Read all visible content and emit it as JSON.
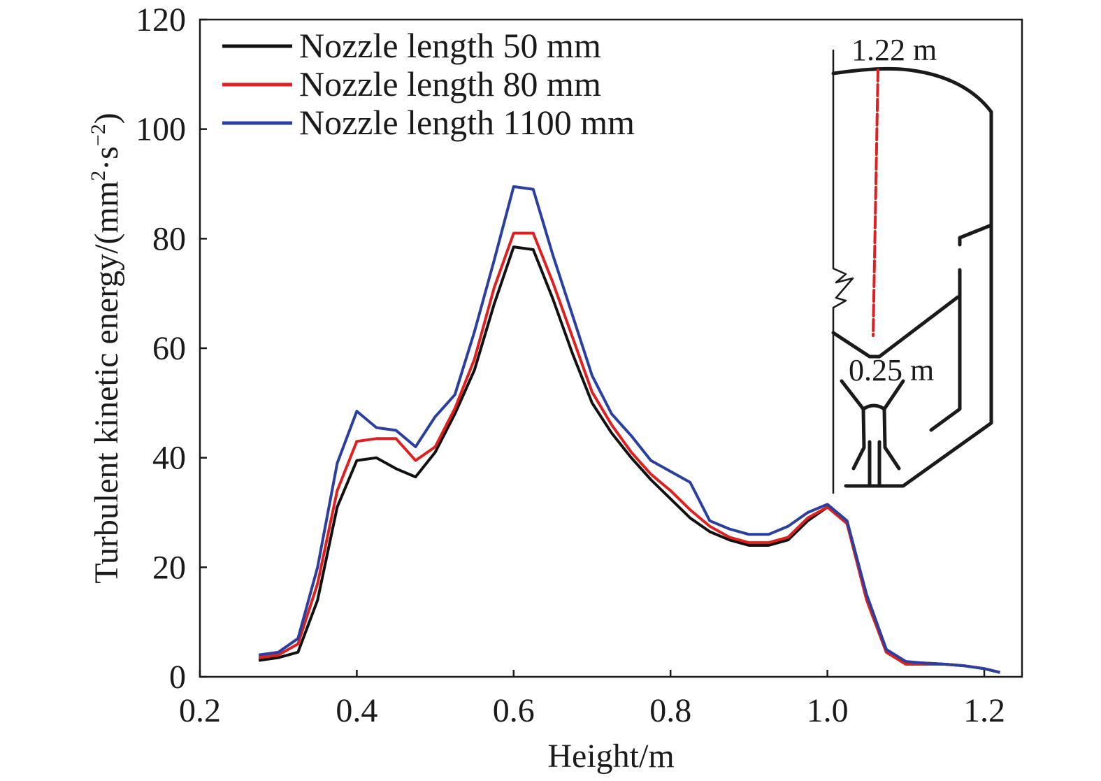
{
  "chart_data": {
    "type": "line",
    "xlabel": "Height/m",
    "ylabel": "Turbulent kinetic energy/(mm",
    "ylabel_sup1": "2",
    "ylabel_mid": "·s",
    "ylabel_sup2": "−2",
    "ylabel_end": ")",
    "xlim": [
      0.2,
      1.25
    ],
    "ylim": [
      0,
      120
    ],
    "xticks": [
      "0.2",
      "0.4",
      "0.6",
      "0.8",
      "1.0",
      "1.2"
    ],
    "xtick_values": [
      0.2,
      0.4,
      0.6,
      0.8,
      1.0,
      1.2
    ],
    "yticks": [
      "0",
      "20",
      "40",
      "60",
      "80",
      "100",
      "120"
    ],
    "ytick_values": [
      0,
      20,
      40,
      60,
      80,
      100,
      120
    ],
    "grid": false,
    "legend_position": "top-left",
    "series": [
      {
        "name": "Nozzle length 50 mm",
        "color": "#111111",
        "points": [
          [
            0.275,
            3
          ],
          [
            0.3,
            3.5
          ],
          [
            0.325,
            4.5
          ],
          [
            0.35,
            14
          ],
          [
            0.375,
            31
          ],
          [
            0.4,
            39.5
          ],
          [
            0.425,
            40
          ],
          [
            0.45,
            38
          ],
          [
            0.475,
            36.5
          ],
          [
            0.5,
            41
          ],
          [
            0.525,
            48
          ],
          [
            0.55,
            56
          ],
          [
            0.575,
            68
          ],
          [
            0.6,
            78.5
          ],
          [
            0.625,
            78
          ],
          [
            0.65,
            69
          ],
          [
            0.675,
            59
          ],
          [
            0.7,
            50
          ],
          [
            0.725,
            44.5
          ],
          [
            0.75,
            40
          ],
          [
            0.775,
            36
          ],
          [
            0.8,
            32.5
          ],
          [
            0.825,
            29
          ],
          [
            0.85,
            26.5
          ],
          [
            0.875,
            25
          ],
          [
            0.9,
            24
          ],
          [
            0.925,
            24
          ],
          [
            0.95,
            25
          ],
          [
            0.975,
            28.5
          ],
          [
            1.0,
            31
          ],
          [
            1.025,
            28
          ],
          [
            1.05,
            15
          ],
          [
            1.075,
            5
          ],
          [
            1.1,
            2.5
          ],
          [
            1.125,
            2.5
          ],
          [
            1.15,
            2.3
          ],
          [
            1.175,
            2
          ],
          [
            1.2,
            1.5
          ],
          [
            1.22,
            0.8
          ]
        ]
      },
      {
        "name": "Nozzle length 80 mm",
        "color": "#e02020",
        "points": [
          [
            0.275,
            3.5
          ],
          [
            0.3,
            4
          ],
          [
            0.325,
            6
          ],
          [
            0.35,
            17
          ],
          [
            0.375,
            34
          ],
          [
            0.4,
            43
          ],
          [
            0.425,
            43.5
          ],
          [
            0.45,
            43.5
          ],
          [
            0.475,
            39.5
          ],
          [
            0.5,
            42
          ],
          [
            0.525,
            49
          ],
          [
            0.55,
            58
          ],
          [
            0.575,
            71
          ],
          [
            0.6,
            81
          ],
          [
            0.625,
            81
          ],
          [
            0.65,
            72
          ],
          [
            0.675,
            62
          ],
          [
            0.7,
            52
          ],
          [
            0.725,
            46
          ],
          [
            0.75,
            41
          ],
          [
            0.775,
            37
          ],
          [
            0.8,
            34
          ],
          [
            0.825,
            30.5
          ],
          [
            0.85,
            27.5
          ],
          [
            0.875,
            25.5
          ],
          [
            0.9,
            24.5
          ],
          [
            0.925,
            24.5
          ],
          [
            0.95,
            25.5
          ],
          [
            0.975,
            29
          ],
          [
            1.0,
            31
          ],
          [
            1.025,
            28
          ],
          [
            1.05,
            14
          ],
          [
            1.075,
            4.5
          ],
          [
            1.1,
            2.3
          ],
          [
            1.125,
            2.3
          ],
          [
            1.15,
            2.3
          ],
          [
            1.175,
            2
          ],
          [
            1.2,
            1.5
          ],
          [
            1.22,
            0.8
          ]
        ]
      },
      {
        "name": "Nozzle length 1100 mm",
        "color": "#2b3fa0",
        "points": [
          [
            0.275,
            4
          ],
          [
            0.3,
            4.5
          ],
          [
            0.325,
            7
          ],
          [
            0.35,
            20
          ],
          [
            0.375,
            39
          ],
          [
            0.4,
            48.5
          ],
          [
            0.425,
            45.5
          ],
          [
            0.45,
            45
          ],
          [
            0.475,
            42
          ],
          [
            0.5,
            47.5
          ],
          [
            0.525,
            51.5
          ],
          [
            0.55,
            63
          ],
          [
            0.575,
            76
          ],
          [
            0.6,
            89.5
          ],
          [
            0.625,
            89
          ],
          [
            0.65,
            77
          ],
          [
            0.675,
            66
          ],
          [
            0.7,
            55
          ],
          [
            0.725,
            48
          ],
          [
            0.75,
            44
          ],
          [
            0.775,
            39.5
          ],
          [
            0.8,
            37.5
          ],
          [
            0.825,
            35.5
          ],
          [
            0.85,
            28.5
          ],
          [
            0.875,
            27
          ],
          [
            0.9,
            26
          ],
          [
            0.925,
            26
          ],
          [
            0.95,
            27.5
          ],
          [
            0.975,
            30
          ],
          [
            1.0,
            31.5
          ],
          [
            1.025,
            28.5
          ],
          [
            1.05,
            15
          ],
          [
            1.075,
            5
          ],
          [
            1.1,
            2.8
          ],
          [
            1.125,
            2.5
          ],
          [
            1.15,
            2.3
          ],
          [
            1.175,
            2
          ],
          [
            1.2,
            1.5
          ],
          [
            1.22,
            0.8
          ]
        ]
      }
    ],
    "inset": {
      "top_label": "1.22 m",
      "bottom_label": "0.25 m"
    }
  }
}
